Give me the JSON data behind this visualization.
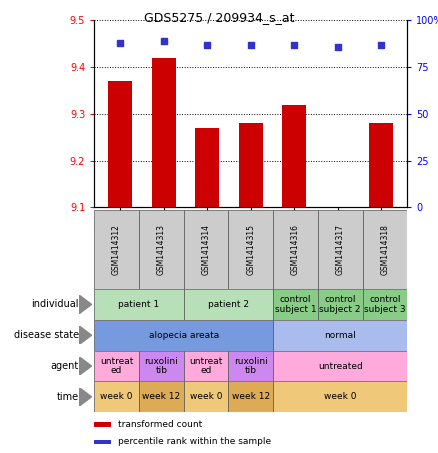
{
  "title": "GDS5275 / 209934_s_at",
  "samples": [
    "GSM1414312",
    "GSM1414313",
    "GSM1414314",
    "GSM1414315",
    "GSM1414316",
    "GSM1414317",
    "GSM1414318"
  ],
  "bar_values": [
    9.37,
    9.42,
    9.27,
    9.28,
    9.32,
    9.1,
    9.28
  ],
  "percentile_values": [
    88,
    89,
    87,
    87,
    87,
    86,
    87
  ],
  "ylim_left": [
    9.1,
    9.5
  ],
  "ylim_right": [
    0,
    100
  ],
  "yticks_left": [
    9.1,
    9.2,
    9.3,
    9.4,
    9.5
  ],
  "yticks_right": [
    0,
    25,
    50,
    75,
    100
  ],
  "bar_color": "#cc0000",
  "dot_color": "#3333cc",
  "annotation_rows": [
    {
      "label": "individual",
      "cells": [
        {
          "text": "patient 1",
          "span": 2,
          "color": "#b8e0b8"
        },
        {
          "text": "patient 2",
          "span": 2,
          "color": "#b8e0b8"
        },
        {
          "text": "control\nsubject 1",
          "span": 1,
          "color": "#88cc88"
        },
        {
          "text": "control\nsubject 2",
          "span": 1,
          "color": "#88cc88"
        },
        {
          "text": "control\nsubject 3",
          "span": 1,
          "color": "#88cc88"
        }
      ]
    },
    {
      "label": "disease state",
      "cells": [
        {
          "text": "alopecia areata",
          "span": 4,
          "color": "#7799dd"
        },
        {
          "text": "normal",
          "span": 3,
          "color": "#aabbee"
        }
      ]
    },
    {
      "label": "agent",
      "cells": [
        {
          "text": "untreat\ned",
          "span": 1,
          "color": "#ffaadd"
        },
        {
          "text": "ruxolini\ntib",
          "span": 1,
          "color": "#cc88ee"
        },
        {
          "text": "untreat\ned",
          "span": 1,
          "color": "#ffaadd"
        },
        {
          "text": "ruxolini\ntib",
          "span": 1,
          "color": "#cc88ee"
        },
        {
          "text": "untreated",
          "span": 3,
          "color": "#ffaadd"
        }
      ]
    },
    {
      "label": "time",
      "cells": [
        {
          "text": "week 0",
          "span": 1,
          "color": "#f0c87a"
        },
        {
          "text": "week 12",
          "span": 1,
          "color": "#ddaa55"
        },
        {
          "text": "week 0",
          "span": 1,
          "color": "#f0c87a"
        },
        {
          "text": "week 12",
          "span": 1,
          "color": "#ddaa55"
        },
        {
          "text": "week 0",
          "span": 3,
          "color": "#f0c87a"
        }
      ]
    }
  ],
  "legend": [
    {
      "color": "#cc0000",
      "label": "transformed count"
    },
    {
      "color": "#3333cc",
      "label": "percentile rank within the sample"
    }
  ],
  "fig_width": 4.38,
  "fig_height": 4.53,
  "dpi": 100
}
